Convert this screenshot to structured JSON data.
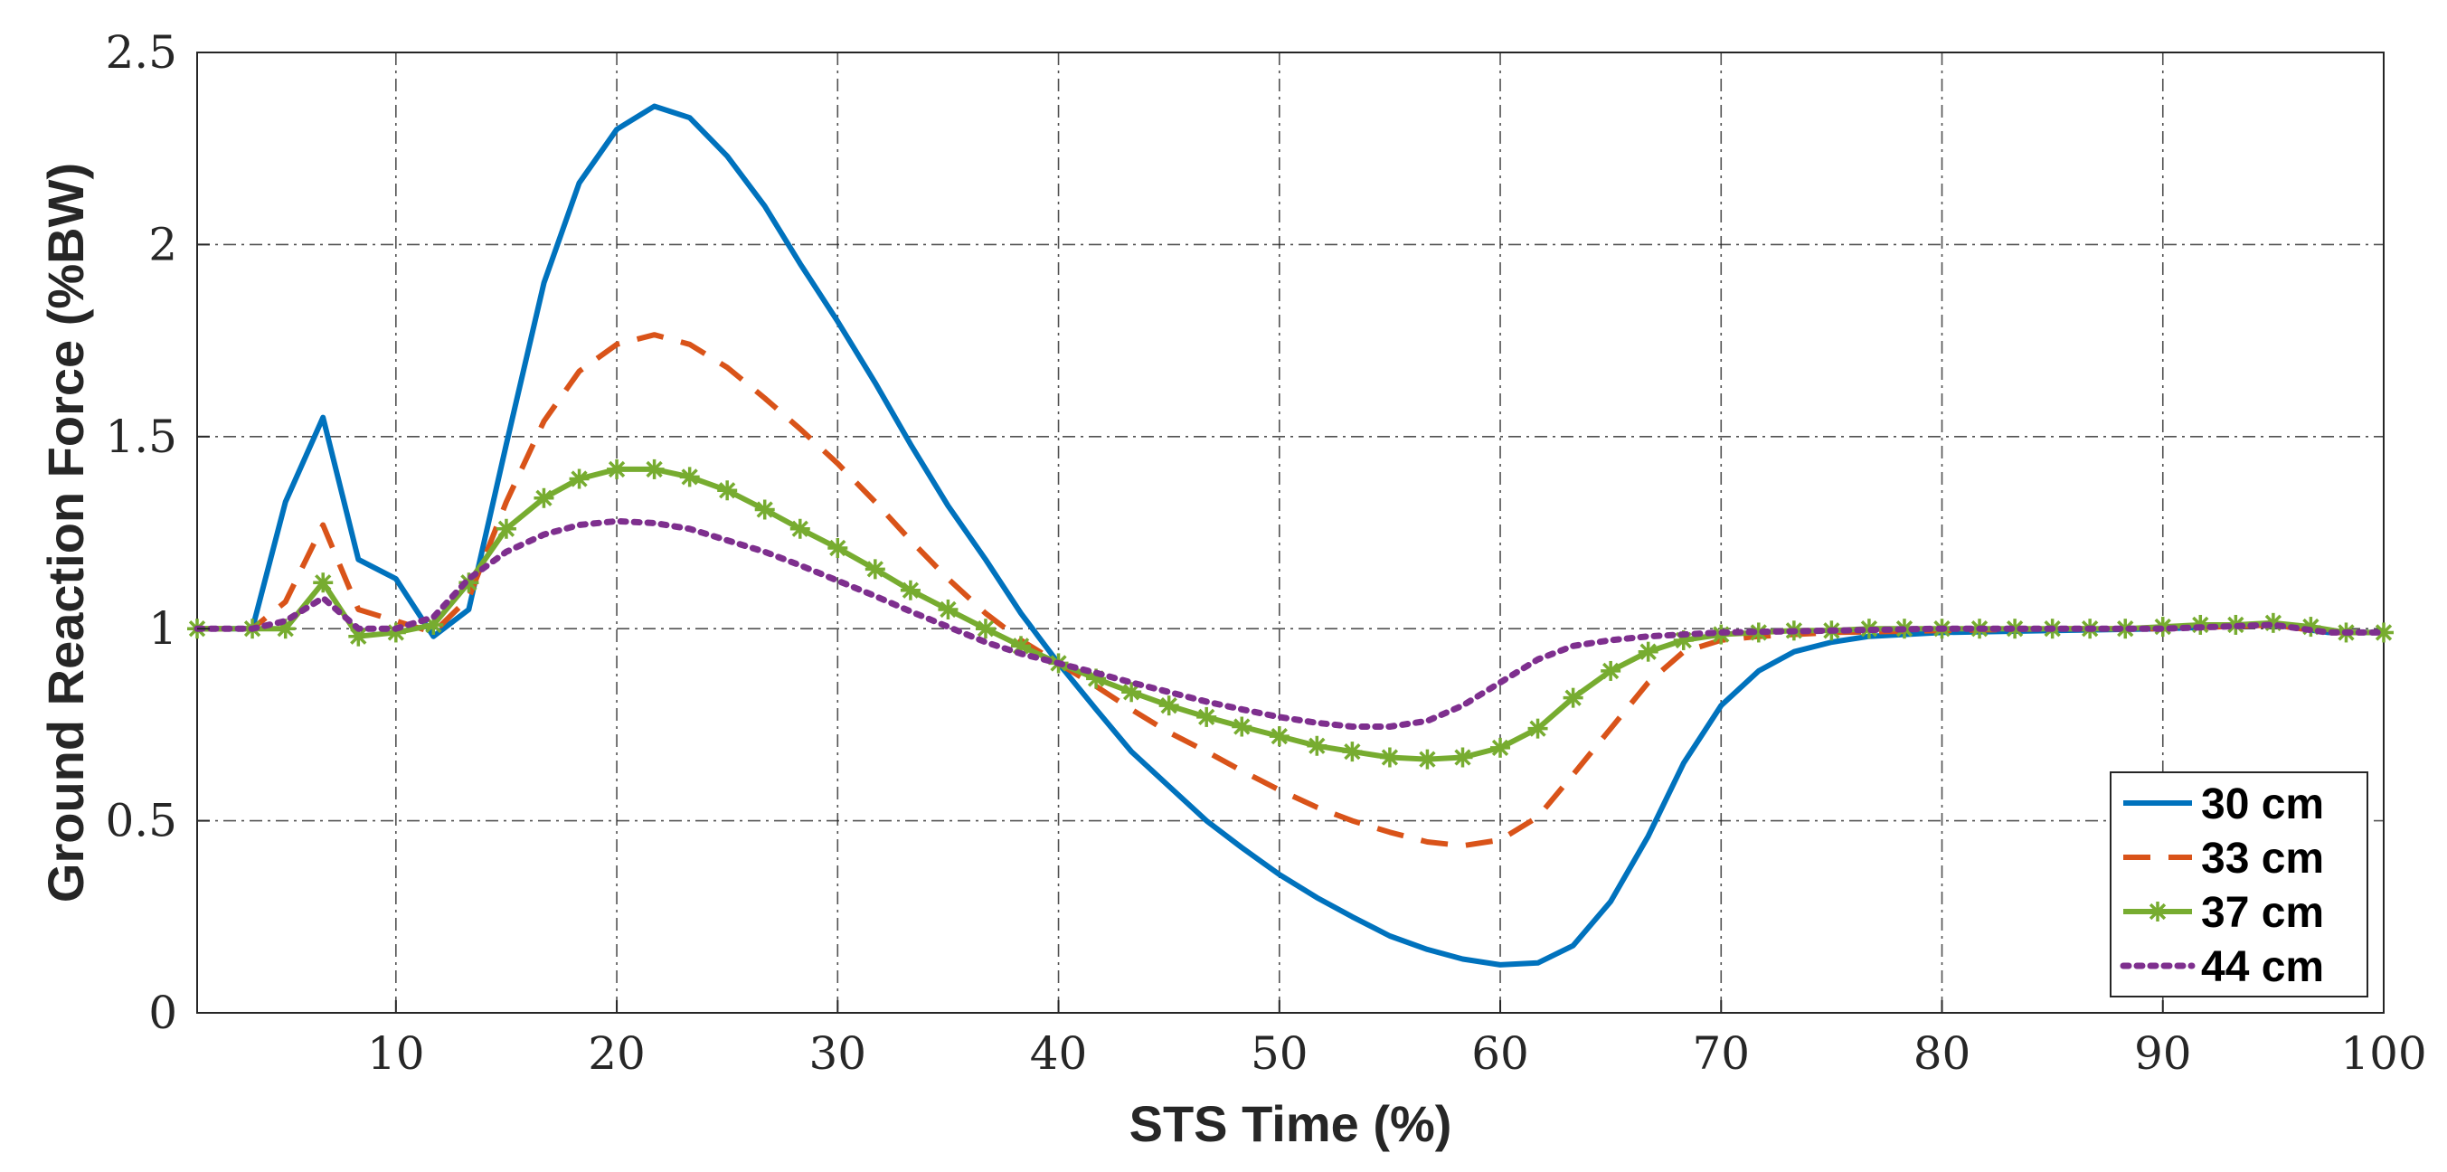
{
  "chart_data": {
    "type": "line",
    "title": "",
    "xlabel": "STS Time (%)",
    "ylabel": "Ground Reaction Force (%BW)",
    "xlim": [
      1,
      100
    ],
    "ylim": [
      0,
      2.5
    ],
    "xticks": [
      10,
      20,
      30,
      40,
      50,
      60,
      70,
      80,
      90,
      100
    ],
    "yticks": [
      0,
      0.5,
      1,
      1.5,
      2,
      2.5
    ],
    "grid": true,
    "legend_position": "bottom-right",
    "series": [
      {
        "name": "30 cm",
        "color": "#0072BD",
        "style": "solid",
        "marker": "none",
        "x": [
          1,
          3.5,
          5,
          6.7,
          8.3,
          10,
          11.7,
          13.3,
          15,
          16.7,
          18.3,
          20,
          21.7,
          23.3,
          25,
          26.7,
          28.3,
          30,
          31.7,
          33.3,
          35,
          36.7,
          38.3,
          40,
          41.7,
          43.3,
          45,
          46.7,
          48.3,
          50,
          51.7,
          53.3,
          55,
          56.7,
          58.3,
          60,
          61.7,
          63.3,
          65,
          66.7,
          68.3,
          70,
          71.7,
          73.3,
          75,
          76.7,
          78.3,
          80,
          85,
          90,
          95,
          97.5,
          100
        ],
        "y": [
          1.0,
          1.0,
          1.33,
          1.55,
          1.18,
          1.13,
          0.98,
          1.05,
          1.48,
          1.9,
          2.16,
          2.3,
          2.36,
          2.33,
          2.23,
          2.1,
          1.95,
          1.8,
          1.64,
          1.48,
          1.32,
          1.18,
          1.04,
          0.91,
          0.79,
          0.68,
          0.59,
          0.5,
          0.43,
          0.36,
          0.3,
          0.25,
          0.2,
          0.165,
          0.14,
          0.125,
          0.13,
          0.175,
          0.29,
          0.46,
          0.65,
          0.8,
          0.89,
          0.94,
          0.965,
          0.98,
          0.985,
          0.99,
          0.995,
          1.0,
          1.01,
          0.99,
          0.99
        ]
      },
      {
        "name": "33 cm",
        "color": "#D95319",
        "style": "dashed",
        "marker": "none",
        "x": [
          1,
          3.5,
          5,
          6.7,
          8.3,
          10,
          11.7,
          13.3,
          15,
          16.7,
          18.3,
          20,
          21.7,
          23.3,
          25,
          26.7,
          28.3,
          30,
          31.7,
          33.3,
          35,
          36.7,
          38.3,
          40,
          41.7,
          43.3,
          45,
          46.7,
          48.3,
          50,
          51.7,
          53.3,
          55,
          56.7,
          58.3,
          60,
          61.7,
          63.3,
          65,
          66.7,
          68.3,
          70,
          71.7,
          75,
          80,
          85,
          90,
          95,
          97.5,
          100
        ],
        "y": [
          1.0,
          1.0,
          1.07,
          1.27,
          1.05,
          1.02,
          0.99,
          1.08,
          1.33,
          1.54,
          1.67,
          1.74,
          1.765,
          1.74,
          1.68,
          1.6,
          1.52,
          1.43,
          1.33,
          1.23,
          1.13,
          1.04,
          0.97,
          0.91,
          0.85,
          0.79,
          0.73,
          0.68,
          0.63,
          0.58,
          0.535,
          0.5,
          0.47,
          0.445,
          0.435,
          0.45,
          0.51,
          0.62,
          0.74,
          0.86,
          0.94,
          0.97,
          0.98,
          0.99,
          0.995,
          1.0,
          1.0,
          1.01,
          0.99,
          0.99
        ]
      },
      {
        "name": "37 cm",
        "color": "#77AC30",
        "style": "solid",
        "marker": "asterisk",
        "x": [
          1,
          3.5,
          5,
          6.7,
          8.3,
          10,
          11.7,
          13.3,
          15,
          16.7,
          18.3,
          20,
          21.7,
          23.3,
          25,
          26.7,
          28.3,
          30,
          31.7,
          33.3,
          35,
          36.7,
          38.3,
          40,
          41.7,
          43.3,
          45,
          46.7,
          48.3,
          50,
          51.7,
          53.3,
          55,
          56.7,
          58.3,
          60,
          61.7,
          63.3,
          65,
          66.7,
          68.3,
          70,
          71.7,
          73.3,
          75,
          76.7,
          78.3,
          80,
          81.7,
          83.3,
          85,
          86.7,
          88.3,
          90,
          91.7,
          93.3,
          95,
          96.7,
          98.3,
          100
        ],
        "y": [
          1.0,
          1.0,
          1.0,
          1.12,
          0.98,
          0.99,
          1.01,
          1.12,
          1.26,
          1.34,
          1.39,
          1.415,
          1.415,
          1.395,
          1.36,
          1.31,
          1.26,
          1.21,
          1.155,
          1.1,
          1.05,
          1.0,
          0.955,
          0.91,
          0.87,
          0.835,
          0.8,
          0.77,
          0.745,
          0.72,
          0.695,
          0.68,
          0.665,
          0.66,
          0.665,
          0.69,
          0.74,
          0.82,
          0.89,
          0.94,
          0.97,
          0.985,
          0.99,
          0.995,
          0.995,
          1.0,
          1.0,
          1.0,
          1.0,
          1.0,
          1.0,
          1.0,
          1.0,
          1.005,
          1.01,
          1.01,
          1.015,
          1.005,
          0.99,
          0.99
        ]
      },
      {
        "name": "44 cm",
        "color": "#7E2F8E",
        "style": "dotted",
        "marker": "none",
        "x": [
          1,
          3.5,
          5,
          6.7,
          8.3,
          10,
          11.7,
          13.3,
          15,
          16.7,
          18.3,
          20,
          21.7,
          23.3,
          25,
          26.7,
          28.3,
          30,
          31.7,
          33.3,
          35,
          36.7,
          38.3,
          40,
          41.7,
          43.3,
          45,
          46.7,
          48.3,
          50,
          51.7,
          53.3,
          55,
          56.7,
          58.3,
          60,
          61.7,
          63.3,
          65,
          66.7,
          68.3,
          70,
          75,
          80,
          85,
          90,
          95,
          97.5,
          100
        ],
        "y": [
          1.0,
          1.0,
          1.02,
          1.08,
          1.0,
          1.0,
          1.03,
          1.13,
          1.2,
          1.245,
          1.27,
          1.28,
          1.275,
          1.26,
          1.23,
          1.2,
          1.165,
          1.125,
          1.085,
          1.045,
          1.005,
          0.965,
          0.935,
          0.91,
          0.885,
          0.86,
          0.835,
          0.81,
          0.79,
          0.77,
          0.755,
          0.745,
          0.745,
          0.76,
          0.8,
          0.86,
          0.92,
          0.955,
          0.97,
          0.98,
          0.985,
          0.99,
          0.995,
          1.0,
          1.0,
          1.0,
          1.01,
          0.99,
          0.99
        ]
      }
    ]
  }
}
